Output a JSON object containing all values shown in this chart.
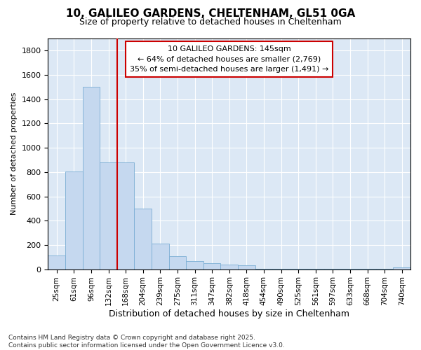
{
  "title_line1": "10, GALILEO GARDENS, CHELTENHAM, GL51 0GA",
  "title_line2": "Size of property relative to detached houses in Cheltenham",
  "xlabel": "Distribution of detached houses by size in Cheltenham",
  "ylabel": "Number of detached properties",
  "categories": [
    "25sqm",
    "61sqm",
    "96sqm",
    "132sqm",
    "168sqm",
    "204sqm",
    "239sqm",
    "275sqm",
    "311sqm",
    "347sqm",
    "382sqm",
    "418sqm",
    "454sqm",
    "490sqm",
    "525sqm",
    "561sqm",
    "597sqm",
    "633sqm",
    "668sqm",
    "704sqm",
    "740sqm"
  ],
  "values": [
    115,
    805,
    1500,
    880,
    880,
    500,
    210,
    110,
    65,
    50,
    40,
    30,
    5,
    5,
    5,
    5,
    5,
    5,
    5,
    5,
    15
  ],
  "bar_color": "#c5d8ef",
  "bar_edge_color": "#7aadd4",
  "fig_bg_color": "#ffffff",
  "plot_bg_color": "#dce8f5",
  "grid_color": "#ffffff",
  "vline_index": 3,
  "vline_color": "#cc0000",
  "annotation_text_line1": "10 GALILEO GARDENS: 145sqm",
  "annotation_text_line2": "← 64% of detached houses are smaller (2,769)",
  "annotation_text_line3": "35% of semi-detached houses are larger (1,491) →",
  "annotation_box_edgecolor": "#cc0000",
  "ylim": [
    0,
    1900
  ],
  "yticks": [
    0,
    200,
    400,
    600,
    800,
    1000,
    1200,
    1400,
    1600,
    1800
  ],
  "title_fontsize": 11,
  "subtitle_fontsize": 9,
  "xlabel_fontsize": 9,
  "ylabel_fontsize": 8,
  "tick_fontsize": 8,
  "xtick_fontsize": 7.5,
  "footnote": "Contains HM Land Registry data © Crown copyright and database right 2025.\nContains public sector information licensed under the Open Government Licence v3.0."
}
